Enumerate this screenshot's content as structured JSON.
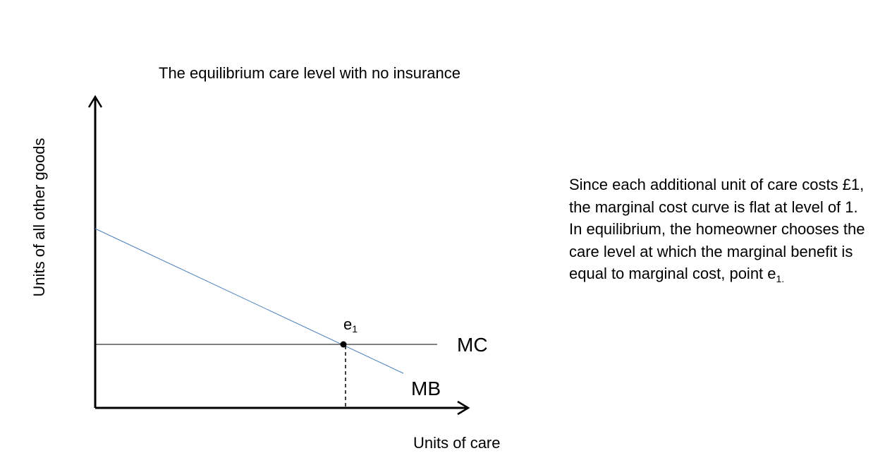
{
  "title": "The equilibrium care level with no insurance",
  "y_axis_label": "Units of all other goods",
  "x_axis_label": "Units of care",
  "curves": {
    "mc": {
      "label": "MC",
      "color": "#000000"
    },
    "mb": {
      "label": "MB",
      "color": "#4a7ebb"
    }
  },
  "equilibrium_point": {
    "label": "e",
    "subscript": "1"
  },
  "explanation": {
    "text": "Since each additional unit of care costs £1, the marginal cost curve is flat at level of 1. In equilibrium, the homeowner chooses the care level at which the marginal benefit is equal to marginal cost, point e",
    "subscript": "1."
  }
}
